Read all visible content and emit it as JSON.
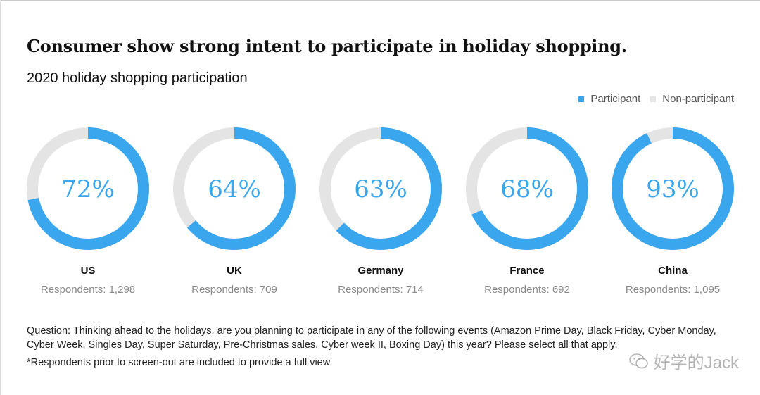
{
  "chart_data": {
    "type": "donut",
    "title": "Consumer show strong intent to participate in holiday shopping.",
    "subtitle": "2020 holiday shopping participation",
    "legend": {
      "placement": "top-right",
      "entries": [
        {
          "label": "Participant",
          "color": "#3aa6ee"
        },
        {
          "label": "Non-participant",
          "color": "#e4e4e4"
        }
      ]
    },
    "unit": "%",
    "items": [
      {
        "country": "US",
        "value": 72,
        "respondents": "Respondents: 1,298"
      },
      {
        "country": "UK",
        "value": 64,
        "respondents": "Respondents: 709"
      },
      {
        "country": "Germany",
        "value": 63,
        "respondents": "Respondents: 714"
      },
      {
        "country": "France",
        "value": 68,
        "respondents": "Respondents: 692"
      },
      {
        "country": "China",
        "value": 93,
        "respondents": "Respondents: 1,095"
      }
    ]
  },
  "footnotes": {
    "question": "Question: Thinking ahead to the holidays, are you planning to participate in any of the following events (Amazon Prime Day, Black Friday, Cyber Monday, Cyber Week, Singles Day, Super Saturday, Pre-Christmas sales. Cyber week II, Boxing Day) this year? Please select all that apply.",
    "note": "*Respondents prior to screen-out are included to provide a full view."
  },
  "watermark": {
    "text": "好学的Jack",
    "icon": "wechat-icon"
  },
  "colors": {
    "participant": "#3aa6ee",
    "non_participant": "#e4e4e4",
    "value_text": "#3aa6ee",
    "respondents_text": "#8a8a8a"
  }
}
